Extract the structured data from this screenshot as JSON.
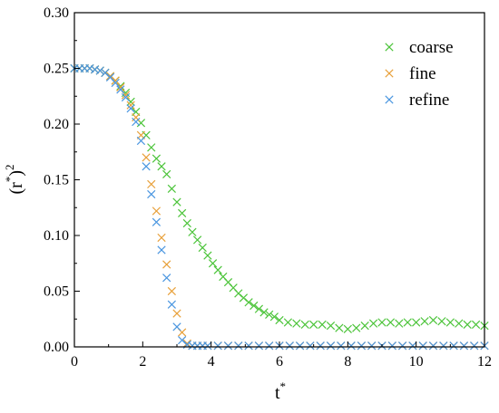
{
  "chart_data": {
    "type": "scatter",
    "title": "",
    "xlabel": "t",
    "xlabel_sup": "*",
    "ylabel": "(r",
    "ylabel_sup1": "*",
    "ylabel_close": ")",
    "ylabel_sup2": "2",
    "xlim": [
      0,
      12
    ],
    "ylim": [
      0.0,
      0.3
    ],
    "xticks": [
      "0",
      "2",
      "4",
      "6",
      "8",
      "10",
      "12"
    ],
    "yticks": [
      "0.00",
      "0.05",
      "0.10",
      "0.15",
      "0.20",
      "0.25",
      "0.30"
    ],
    "grid": false,
    "legend_position": "top-right",
    "marker": "x",
    "series": [
      {
        "name": "coarse",
        "color": "#4cc43a",
        "x": [
          0.0,
          0.15,
          0.3,
          0.45,
          0.6,
          0.75,
          0.9,
          1.05,
          1.2,
          1.35,
          1.5,
          1.65,
          1.8,
          1.95,
          2.1,
          2.25,
          2.4,
          2.55,
          2.7,
          2.85,
          3.0,
          3.15,
          3.3,
          3.45,
          3.6,
          3.75,
          3.9,
          4.05,
          4.2,
          4.35,
          4.5,
          4.65,
          4.8,
          4.95,
          5.1,
          5.25,
          5.4,
          5.55,
          5.7,
          5.85,
          6.0,
          6.25,
          6.5,
          6.75,
          7.0,
          7.25,
          7.5,
          7.75,
          8.0,
          8.25,
          8.5,
          8.75,
          9.0,
          9.25,
          9.5,
          9.75,
          10.0,
          10.25,
          10.5,
          10.75,
          11.0,
          11.25,
          11.5,
          11.75,
          12.0
        ],
        "y": [
          0.25,
          0.25,
          0.25,
          0.25,
          0.249,
          0.248,
          0.246,
          0.243,
          0.239,
          0.234,
          0.228,
          0.22,
          0.211,
          0.201,
          0.19,
          0.179,
          0.169,
          0.162,
          0.155,
          0.142,
          0.13,
          0.12,
          0.111,
          0.103,
          0.096,
          0.089,
          0.082,
          0.075,
          0.069,
          0.063,
          0.058,
          0.053,
          0.048,
          0.044,
          0.04,
          0.037,
          0.034,
          0.031,
          0.029,
          0.027,
          0.024,
          0.022,
          0.021,
          0.02,
          0.02,
          0.02,
          0.019,
          0.017,
          0.016,
          0.017,
          0.019,
          0.021,
          0.022,
          0.022,
          0.021,
          0.022,
          0.022,
          0.023,
          0.024,
          0.023,
          0.022,
          0.021,
          0.02,
          0.02,
          0.019
        ]
      },
      {
        "name": "fine",
        "color": "#e8a03a",
        "x": [
          0.0,
          0.15,
          0.3,
          0.45,
          0.6,
          0.75,
          0.9,
          1.05,
          1.2,
          1.35,
          1.5,
          1.65,
          1.8,
          1.95,
          2.1,
          2.25,
          2.4,
          2.55,
          2.7,
          2.85,
          3.0,
          3.15,
          3.3,
          3.45,
          3.6,
          3.75,
          3.9,
          4.2,
          4.5,
          4.8,
          5.1,
          5.4,
          5.7,
          6.0,
          6.3,
          6.6,
          6.9,
          7.2,
          7.5,
          7.8,
          8.1,
          8.4,
          8.7,
          9.0,
          9.3,
          9.6,
          9.9,
          10.2,
          10.5,
          10.8,
          11.1,
          11.4,
          11.7,
          12.0
        ],
        "y": [
          0.25,
          0.25,
          0.25,
          0.25,
          0.249,
          0.248,
          0.246,
          0.243,
          0.239,
          0.233,
          0.226,
          0.217,
          0.206,
          0.19,
          0.17,
          0.146,
          0.122,
          0.098,
          0.074,
          0.05,
          0.03,
          0.013,
          0.003,
          0.001,
          0.001,
          0.001,
          0.001,
          0.001,
          0.001,
          0.001,
          0.001,
          0.001,
          0.001,
          0.001,
          0.001,
          0.001,
          0.001,
          0.001,
          0.001,
          0.001,
          0.001,
          0.001,
          0.001,
          0.001,
          0.001,
          0.001,
          0.001,
          0.001,
          0.001,
          0.001,
          0.001,
          0.001,
          0.001,
          0.001
        ]
      },
      {
        "name": "refine",
        "color": "#4a96e0",
        "x": [
          0.0,
          0.15,
          0.3,
          0.45,
          0.6,
          0.75,
          0.9,
          1.05,
          1.2,
          1.35,
          1.5,
          1.65,
          1.8,
          1.95,
          2.1,
          2.25,
          2.4,
          2.55,
          2.7,
          2.85,
          3.0,
          3.15,
          3.3,
          3.45,
          3.6,
          3.75,
          3.9,
          4.2,
          4.5,
          4.8,
          5.1,
          5.4,
          5.7,
          6.0,
          6.3,
          6.6,
          6.9,
          7.2,
          7.5,
          7.8,
          8.1,
          8.4,
          8.7,
          9.0,
          9.3,
          9.6,
          9.9,
          10.2,
          10.5,
          10.8,
          11.1,
          11.4,
          11.7,
          12.0
        ],
        "y": [
          0.25,
          0.25,
          0.25,
          0.25,
          0.249,
          0.248,
          0.246,
          0.242,
          0.237,
          0.231,
          0.224,
          0.214,
          0.202,
          0.185,
          0.162,
          0.137,
          0.112,
          0.087,
          0.062,
          0.038,
          0.018,
          0.006,
          0.002,
          0.001,
          0.001,
          0.001,
          0.001,
          0.001,
          0.001,
          0.001,
          0.001,
          0.001,
          0.001,
          0.001,
          0.001,
          0.001,
          0.001,
          0.001,
          0.001,
          0.001,
          0.001,
          0.001,
          0.001,
          0.001,
          0.001,
          0.001,
          0.001,
          0.001,
          0.001,
          0.001,
          0.001,
          0.001,
          0.001,
          0.001
        ]
      }
    ]
  }
}
